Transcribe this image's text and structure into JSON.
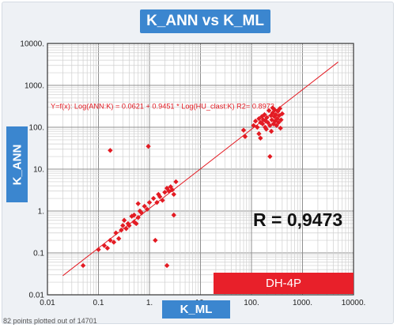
{
  "chart_data": {
    "type": "scatter",
    "title": "K_ANN vs K_ML",
    "xlabel": "K_ML",
    "ylabel": "K_ANN",
    "x_scale": "log",
    "y_scale": "log",
    "xlim": [
      0.01,
      10000
    ],
    "ylim": [
      0.01,
      10000
    ],
    "x_tick_labels": [
      "0.01",
      "0.1",
      "1.",
      "10.",
      "100.",
      "1000.",
      "10000."
    ],
    "y_tick_labels": [
      "0.01",
      "0.1",
      "1.",
      "10.",
      "100.",
      "1000.",
      "10000."
    ],
    "grid": true,
    "equation": "Y=f(x): Log(ANN:K) = 0.0621  +  0.9451 * Log(HU_clast:K)   R2= 0.8973",
    "fit_line": {
      "intercept_log10": 0.0621,
      "slope": 0.9451
    },
    "correlation_label": "R = 0,9473",
    "stamp_label": "DH-4P",
    "footer": "82 points plotted out of 14701",
    "point_color": "#e31b23",
    "line_color": "#e31b23",
    "points": [
      [
        0.05,
        0.05
      ],
      [
        0.1,
        0.12
      ],
      [
        0.13,
        0.15
      ],
      [
        0.15,
        0.13
      ],
      [
        0.17,
        0.2
      ],
      [
        0.2,
        0.18
      ],
      [
        0.22,
        0.3
      ],
      [
        0.25,
        0.22
      ],
      [
        0.28,
        0.35
      ],
      [
        0.3,
        0.45
      ],
      [
        0.32,
        0.6
      ],
      [
        0.35,
        0.38
      ],
      [
        0.38,
        0.5
      ],
      [
        0.4,
        0.45
      ],
      [
        0.45,
        0.75
      ],
      [
        0.5,
        0.55
      ],
      [
        0.55,
        0.5
      ],
      [
        0.6,
        0.7
      ],
      [
        0.65,
        1.0
      ],
      [
        0.7,
        0.9
      ],
      [
        0.8,
        1.3
      ],
      [
        0.9,
        1.1
      ],
      [
        1.0,
        1.6
      ],
      [
        1.2,
        2.0
      ],
      [
        1.4,
        1.6
      ],
      [
        1.5,
        2.5
      ],
      [
        1.6,
        2.2
      ],
      [
        1.8,
        1.8
      ],
      [
        2.0,
        2.8
      ],
      [
        2.2,
        3.5
      ],
      [
        2.4,
        3.0
      ],
      [
        2.6,
        3.8
      ],
      [
        2.8,
        3.2
      ],
      [
        3.0,
        2.5
      ],
      [
        3.3,
        5.0
      ],
      [
        3.0,
        0.8
      ],
      [
        1.3,
        0.2
      ],
      [
        2.2,
        0.05
      ],
      [
        0.17,
        28
      ],
      [
        0.95,
        35
      ],
      [
        0.5,
        0.8
      ],
      [
        0.6,
        1.5
      ],
      [
        70,
        85
      ],
      [
        75,
        60
      ],
      [
        110,
        110
      ],
      [
        120,
        140
      ],
      [
        130,
        100
      ],
      [
        140,
        160
      ],
      [
        150,
        130
      ],
      [
        160,
        180
      ],
      [
        165,
        120
      ],
      [
        170,
        150
      ],
      [
        180,
        200
      ],
      [
        185,
        100
      ],
      [
        190,
        140
      ],
      [
        195,
        90
      ],
      [
        200,
        170
      ],
      [
        210,
        130
      ],
      [
        220,
        250
      ],
      [
        230,
        110
      ],
      [
        240,
        190
      ],
      [
        245,
        80
      ],
      [
        250,
        150
      ],
      [
        260,
        220
      ],
      [
        270,
        120
      ],
      [
        280,
        180
      ],
      [
        285,
        260
      ],
      [
        290,
        140
      ],
      [
        300,
        200
      ],
      [
        310,
        110
      ],
      [
        320,
        160
      ],
      [
        330,
        240
      ],
      [
        340,
        130
      ],
      [
        350,
        190
      ],
      [
        360,
        280
      ],
      [
        370,
        95
      ],
      [
        380,
        150
      ],
      [
        140,
        70
      ],
      [
        150,
        55
      ],
      [
        230,
        20
      ],
      [
        400,
        210
      ],
      [
        260,
        290
      ]
    ]
  }
}
